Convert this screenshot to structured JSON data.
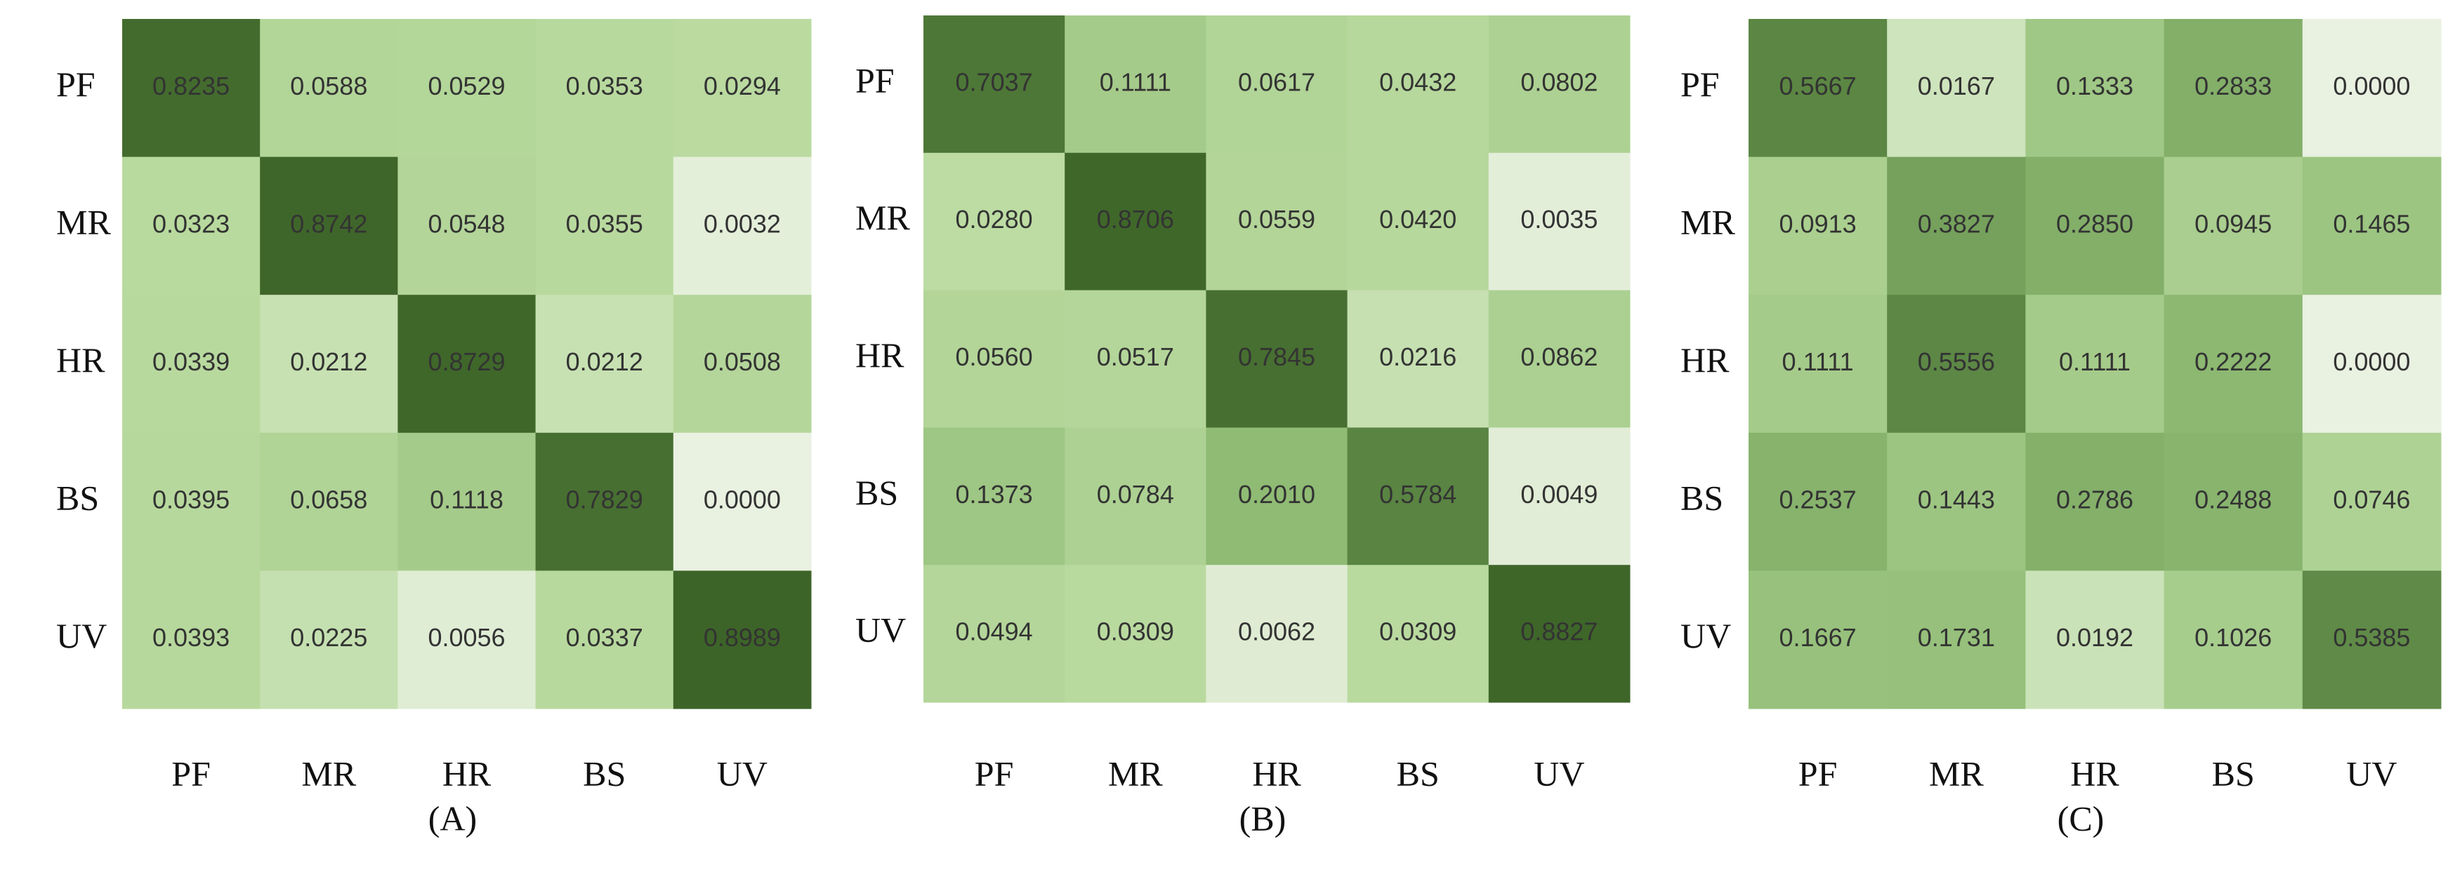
{
  "chart_data": [
    {
      "type": "heatmap",
      "label": "(A)",
      "x_categories": [
        "PF",
        "MR",
        "HR",
        "BS",
        "UV"
      ],
      "y_categories": [
        "PF",
        "MR",
        "HR",
        "BS",
        "UV"
      ],
      "values": [
        [
          0.8235,
          0.0588,
          0.0529,
          0.0353,
          0.0294
        ],
        [
          0.0323,
          0.8742,
          0.0548,
          0.0355,
          0.0032
        ],
        [
          0.0339,
          0.0212,
          0.8729,
          0.0212,
          0.0508
        ],
        [
          0.0395,
          0.0658,
          0.1118,
          0.7829,
          0
        ],
        [
          0.0393,
          0.0225,
          0.0056,
          0.0337,
          0.8989
        ]
      ],
      "value_labels": [
        [
          "0.8235",
          "0.0588",
          "0.0529",
          "0.0353",
          "0.0294"
        ],
        [
          "0.0323",
          "0.8742",
          "0.0548",
          "0.0355",
          "0.0032"
        ],
        [
          "0.0339",
          "0.0212",
          "0.8729",
          "0.0212",
          "0.0508"
        ],
        [
          "0.0395",
          "0.0658",
          "0.1118",
          "0.7829",
          "0.0000"
        ],
        [
          "0.0393",
          "0.0225",
          "0.0056",
          "0.0337",
          "0.8989"
        ]
      ],
      "colorscale": [
        [
          0,
          "#e9f1e1"
        ],
        [
          0.03,
          "#b9da9f"
        ],
        [
          0.2,
          "#8fbb74"
        ],
        [
          0.6,
          "#56813f"
        ],
        [
          0.9,
          "#3d6428"
        ]
      ]
    },
    {
      "type": "heatmap",
      "label": "(B)",
      "x_categories": [
        "PF",
        "MR",
        "HR",
        "BS",
        "UV"
      ],
      "y_categories": [
        "PF",
        "MR",
        "HR",
        "BS",
        "UV"
      ],
      "values": [
        [
          0.7037,
          0.1111,
          0.0617,
          0.0432,
          0.0802
        ],
        [
          0.028,
          0.8706,
          0.0559,
          0.042,
          0.0035
        ],
        [
          0.056,
          0.0517,
          0.7845,
          0.0216,
          0.0862
        ],
        [
          0.1373,
          0.0784,
          0.201,
          0.5784,
          0.0049
        ],
        [
          0.0494,
          0.0309,
          0.0062,
          0.0309,
          0.8827
        ]
      ],
      "value_labels": [
        [
          "0.7037",
          "0.1111",
          "0.0617",
          "0.0432",
          "0.0802"
        ],
        [
          "0.0280",
          "0.8706",
          "0.0559",
          "0.0420",
          "0.0035"
        ],
        [
          "0.0560",
          "0.0517",
          "0.7845",
          "0.0216",
          "0.0862"
        ],
        [
          "0.1373",
          "0.0784",
          "0.2010",
          "0.5784",
          "0.0049"
        ],
        [
          "0.0494",
          "0.0309",
          "0.0062",
          "0.0309",
          "0.8827"
        ]
      ],
      "colorscale": [
        [
          0,
          "#e9f1e1"
        ],
        [
          0.03,
          "#b9da9f"
        ],
        [
          0.2,
          "#8fbb74"
        ],
        [
          0.6,
          "#56813f"
        ],
        [
          0.9,
          "#3d6428"
        ]
      ]
    },
    {
      "type": "heatmap",
      "label": "(C)",
      "x_categories": [
        "PF",
        "MR",
        "HR",
        "BS",
        "UV"
      ],
      "y_categories": [
        "PF",
        "MR",
        "HR",
        "BS",
        "UV"
      ],
      "values": [
        [
          0.5667,
          0.0167,
          0.1333,
          0.2833,
          0
        ],
        [
          0.0913,
          0.3827,
          0.285,
          0.0945,
          0.1465
        ],
        [
          0.1111,
          0.5556,
          0.1111,
          0.2222,
          0
        ],
        [
          0.2537,
          0.1443,
          0.2786,
          0.2488,
          0.0746
        ],
        [
          0.1667,
          0.1731,
          0.0192,
          0.1026,
          0.5385
        ]
      ],
      "value_labels": [
        [
          "0.5667",
          "0.0167",
          "0.1333",
          "0.2833",
          "0.0000"
        ],
        [
          "0.0913",
          "0.3827",
          "0.2850",
          "0.0945",
          "0.1465"
        ],
        [
          "0.1111",
          "0.5556",
          "0.1111",
          "0.2222",
          "0.0000"
        ],
        [
          "0.2537",
          "0.1443",
          "0.2786",
          "0.2488",
          "0.0746"
        ],
        [
          "0.1667",
          "0.1731",
          "0.0192",
          "0.1026",
          "0.5385"
        ]
      ],
      "colorscale": [
        [
          0,
          "#e9f1e1"
        ],
        [
          0.03,
          "#b9da9f"
        ],
        [
          0.2,
          "#8fbb74"
        ],
        [
          0.6,
          "#56813f"
        ],
        [
          0.9,
          "#3d6428"
        ]
      ]
    }
  ]
}
